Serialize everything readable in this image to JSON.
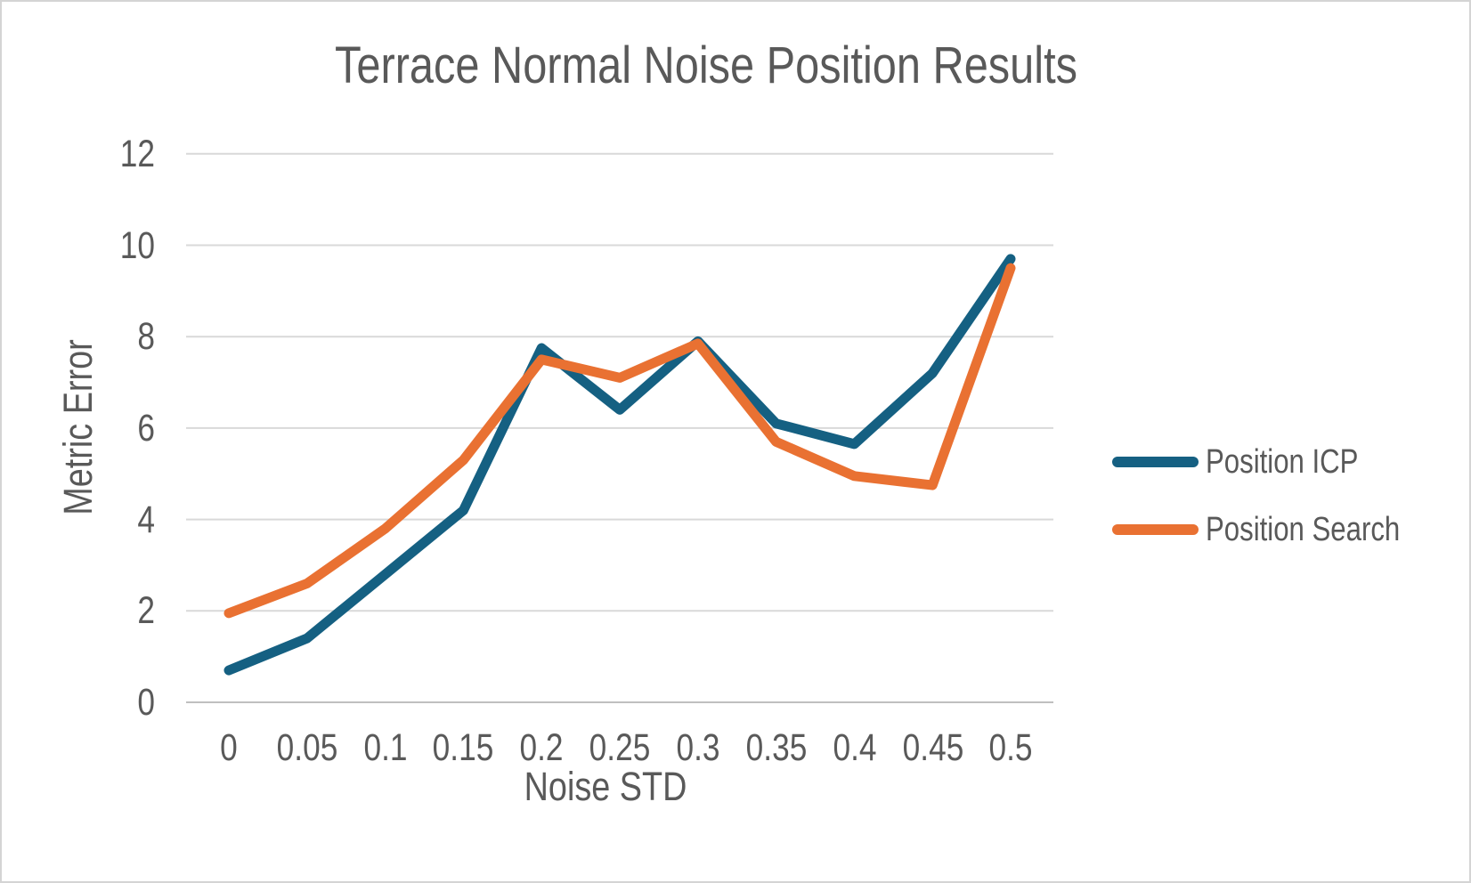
{
  "chart_data": {
    "type": "line",
    "title": "Terrace Normal Noise Position Results",
    "xlabel": "Noise STD",
    "ylabel": "Metric Error",
    "x": [
      0,
      0.05,
      0.1,
      0.15,
      0.2,
      0.25,
      0.3,
      0.35,
      0.4,
      0.45,
      0.5
    ],
    "x_tick_labels": [
      "0",
      "0.05",
      "0.1",
      "0.15",
      "0.2",
      "0.25",
      "0.3",
      "0.35",
      "0.4",
      "0.45",
      "0.5"
    ],
    "y_ticks": [
      0,
      2,
      4,
      6,
      8,
      10,
      12
    ],
    "y_tick_labels": [
      "0",
      "2",
      "4",
      "6",
      "8",
      "10",
      "12"
    ],
    "ylim": [
      0,
      12
    ],
    "grid": "horizontal",
    "legend_position": "right-middle",
    "series": [
      {
        "name": "Position ICP",
        "color": "#156082",
        "values": [
          0.7,
          1.4,
          2.8,
          4.2,
          7.75,
          6.4,
          7.9,
          6.1,
          5.65,
          7.2,
          9.7
        ]
      },
      {
        "name": "Position Search",
        "color": "#E97132",
        "values": [
          1.95,
          2.6,
          3.8,
          5.3,
          7.5,
          7.1,
          7.85,
          5.7,
          4.95,
          4.75,
          9.5
        ]
      }
    ],
    "colors": {
      "text": "#595959",
      "gridline": "#D9D9D9",
      "axis_line": "#BFBFBF",
      "background": "#FFFFFF"
    }
  }
}
